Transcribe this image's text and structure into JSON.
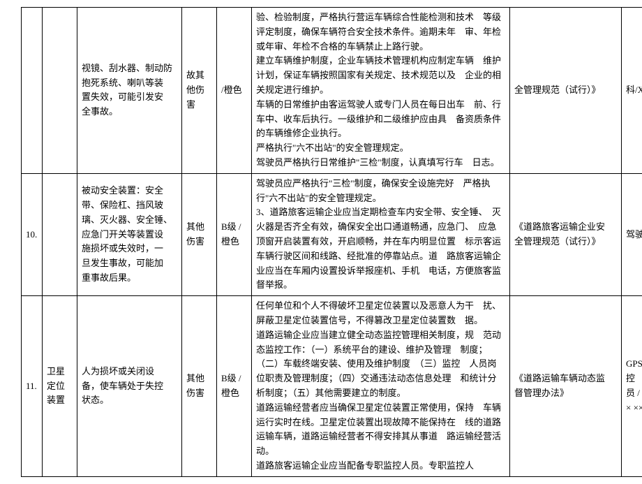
{
  "rows": [
    {
      "id": "",
      "device": "",
      "risk": "视镜、刮水器、制动防抱死系统、喇叭等装　置失效，可能引发安　全事故。",
      "harm": "故其他伤害",
      "level": "/橙色",
      "measures": "验、检验制度，严格执行营运车辆综合性能检测和技术　等级评定制度，确保车辆符合安全技术条件。逾期未年　审、年检或年审、年检不合格的车辆禁止上路行驶。\n建立车辆维护制度，企业车辆技术管理机构应制定车辆　维护计划，保证车辆按照国家有关规定、技术规范以及　企业的相关规定进行维护。\n车辆的日常维护由客运驾驶人或专门人员在每日出车　前、行车中、收车后执行。一级维护和二级维护应由具　备资质条件的车辆维修企业执行。\n严格执行\"六不出站\"的安全管理规定。\n驾驶员严格执行日常维护\"三检\"制度，认真填写行车　日志。",
      "reference": "全管理规范（试行）》",
      "responsible": "科/X ×"
    },
    {
      "id": "10.",
      "device": "",
      "risk": "被动安全装置：安全　带、保险杠、挡风玻　璃、灭火器、安全锤、　应急门开关等装置设　施损坏或失效时，一　旦发生事故，可能加　重事故后果。",
      "harm": "其他伤害",
      "level": "B级 /橙色",
      "measures": "驾驶员应严格执行\"三检\"制度，确保安全设施完好　严格执行\"六不出站\"的安全管理规定。\n3、道路旅客运输企业应当定期检查车内安全带、安全锤、　灭火器是否齐全有效，确保安全出口通道畅通，应急门、　应急顶窗开启装置有效，开启顺畅，并在车内明显位置　标示客运车辆行驶区间和线路、经批准的停靠站点。道　路旅客运输企业应当在车厢内设置投诉举报座机、手机　电话，方便旅客监督举报。",
      "reference": "《道路旅客运输企业安　全管理规范（试行）》",
      "responsible": "驾驶 员"
    },
    {
      "id": "11.",
      "device": "卫星定位装置",
      "risk": "人为损坏或关闭设　备，使车辆处于失控　状态。",
      "harm": "其他伤害",
      "level": "B级 /橙色",
      "measures": "任何单位和个人不得破坏卫星定位装置以及恶意人为干　扰、屏蔽卫星定位装置信号，不得篡改卫星定位装置数　据。\n道路运输企业应当建立健全动态监控管理相关制度，规　范动态监控工作：（一）系统平台的建设、维护及管理　制度；（二）车载终端安装、使用及维护制度　（三）监控　人员岗位职责及管理制度；（四）交通违法动态信息处理　和统计分析制度；（五）其他需要建立的制度。\n道路运输经营者应当确保卫星定位装置正常使用，保持　车辆运行实时在线。卫星定位装置出现故障不能保持在　线的道路运输车辆，道路运输经营者不得安排其从事道　路运输经营活动。\n道路旅客运输企业应当配备专职监控人员。专职监控人",
      "reference": "《道路运输车辆动态监　督管理办法》",
      "responsible": "GPS 监控　人员 / X ×× ××"
    }
  ]
}
